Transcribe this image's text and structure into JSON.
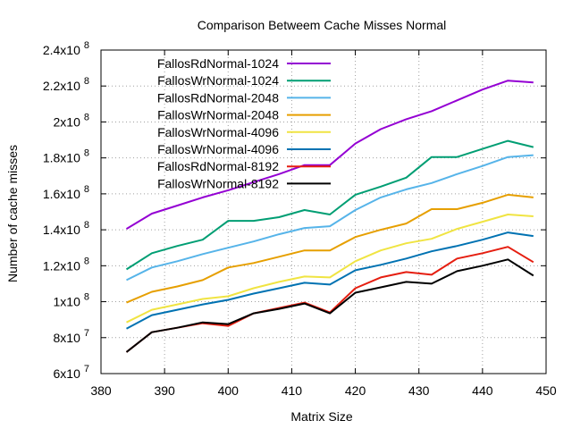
{
  "chart_data": {
    "type": "line",
    "title": "Comparison Betweem Cache Misses Normal",
    "xlabel": "Matrix Size",
    "ylabel": "Number of cache misses",
    "xlim": [
      380,
      450
    ],
    "ylim": [
      60000000,
      240000000
    ],
    "grid": true,
    "legend_position": "top-left",
    "x_ticks": [
      380,
      390,
      400,
      410,
      420,
      430,
      440,
      450
    ],
    "x_tick_labels": [
      "380",
      "390",
      "400",
      "410",
      "420",
      "430",
      "440",
      "450"
    ],
    "y_ticks": [
      {
        "value": 60000000,
        "mantissa": "6x10",
        "exp": "7"
      },
      {
        "value": 80000000,
        "mantissa": "8x10",
        "exp": "7"
      },
      {
        "value": 100000000,
        "mantissa": "1x10",
        "exp": "8"
      },
      {
        "value": 120000000,
        "mantissa": "1.2x10",
        "exp": "8"
      },
      {
        "value": 140000000,
        "mantissa": "1.4x10",
        "exp": "8"
      },
      {
        "value": 160000000,
        "mantissa": "1.6x10",
        "exp": "8"
      },
      {
        "value": 180000000,
        "mantissa": "1.8x10",
        "exp": "8"
      },
      {
        "value": 200000000,
        "mantissa": "2x10",
        "exp": "8"
      },
      {
        "value": 220000000,
        "mantissa": "2.2x10",
        "exp": "8"
      },
      {
        "value": 240000000,
        "mantissa": "2.4x10",
        "exp": "8"
      }
    ],
    "x": [
      384,
      388,
      392,
      396,
      400,
      404,
      408,
      412,
      416,
      420,
      424,
      428,
      432,
      436,
      440,
      444,
      448
    ],
    "series": [
      {
        "name": "FallosRdNormal-1024",
        "color": "#9400d3",
        "values": [
          140500000,
          149000000,
          153500000,
          158000000,
          162000000,
          166500000,
          171000000,
          176000000,
          176000000,
          188000000,
          196000000,
          201500000,
          206000000,
          212000000,
          218000000,
          223000000,
          222000000
        ]
      },
      {
        "name": "FallosWrNormal-1024",
        "color": "#009e73",
        "values": [
          118000000,
          127000000,
          131000000,
          134500000,
          145000000,
          145000000,
          147000000,
          151000000,
          148500000,
          159500000,
          164000000,
          169000000,
          180500000,
          180500000,
          185000000,
          189500000,
          186000000
        ]
      },
      {
        "name": "FallosRdNormal-2048",
        "color": "#56b4e9",
        "values": [
          112000000,
          119000000,
          122500000,
          126500000,
          130000000,
          133500000,
          137500000,
          141000000,
          142000000,
          151000000,
          158000000,
          162500000,
          166000000,
          171000000,
          175500000,
          180500000,
          181500000
        ]
      },
      {
        "name": "FallosWrNormal-2048",
        "color": "#e69f00",
        "values": [
          99500000,
          105500000,
          108500000,
          112000000,
          119000000,
          121500000,
          125000000,
          128500000,
          128500000,
          136000000,
          140000000,
          143500000,
          151500000,
          151500000,
          155000000,
          159500000,
          158000000
        ]
      },
      {
        "name": "FallosWrNormal-4096",
        "color": "#f0e442",
        "values": [
          88500000,
          95500000,
          98500000,
          101500000,
          103000000,
          107500000,
          111000000,
          114000000,
          113500000,
          122500000,
          128500000,
          132500000,
          135000000,
          140500000,
          144500000,
          148500000,
          147500000
        ]
      },
      {
        "name": "FallosWrNormal-4096",
        "color": "#0072b2",
        "values": [
          85000000,
          92500000,
          95500000,
          98500000,
          101000000,
          104500000,
          107500000,
          110500000,
          109500000,
          117500000,
          120500000,
          124000000,
          128000000,
          131000000,
          134500000,
          138500000,
          136500000
        ]
      },
      {
        "name": "FallosRdNormal-8192",
        "color": "#e51e10",
        "values": null,
        "values_list": [
          72000000,
          83000000,
          85500000,
          88000000,
          86500000,
          93500000,
          96500000,
          99500000,
          94000000,
          107500000,
          113500000,
          116500000,
          115000000,
          124000000,
          127000000,
          130500000,
          122000000
        ]
      },
      {
        "name": "FallosWrNormal-8192",
        "color": "#000000",
        "values": null,
        "values_list": [
          72000000,
          83000000,
          85500000,
          88500000,
          87500000,
          93500000,
          96000000,
          99000000,
          93500000,
          105000000,
          108000000,
          111000000,
          110000000,
          117000000,
          120000000,
          123500000,
          114500000
        ]
      }
    ]
  }
}
